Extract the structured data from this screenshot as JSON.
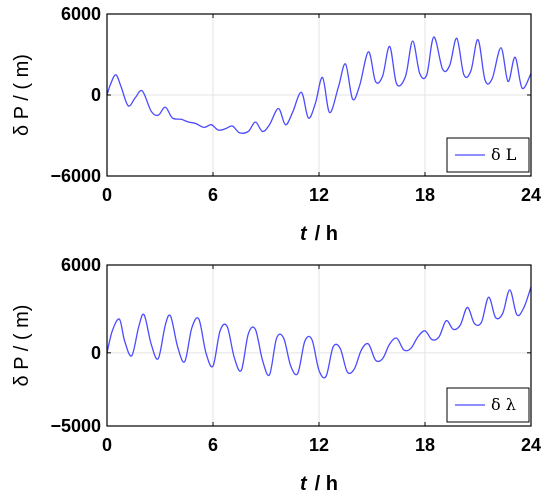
{
  "chart_data": [
    {
      "type": "line",
      "xlabel_var": "t",
      "xlabel_unit": "/ h",
      "ylabel": "δ P / ( m)",
      "xlim": [
        0,
        24
      ],
      "ylim": [
        -6000,
        6000
      ],
      "xticks": [
        0,
        6,
        12,
        18,
        24
      ],
      "yticks": [
        -6000,
        0,
        6000
      ],
      "ytick_labels": [
        "−6000",
        "0",
        "6000"
      ],
      "grid": true,
      "legend_position": "bottom-right",
      "series": [
        {
          "name": "δ L",
          "color": "#4b4bff",
          "x": [
            0,
            0.2,
            0.5,
            0.8,
            1.2,
            1.6,
            2.0,
            2.5,
            2.9,
            3.3,
            3.7,
            4.2,
            4.6,
            5.0,
            5.5,
            5.9,
            6.3,
            6.7,
            7.1,
            7.5,
            8.0,
            8.4,
            8.8,
            9.2,
            9.7,
            10.1,
            10.5,
            11.0,
            11.4,
            11.8,
            12.2,
            12.6,
            13.1,
            13.5,
            13.9,
            14.3,
            14.8,
            15.2,
            15.6,
            16.0,
            16.4,
            16.9,
            17.3,
            17.7,
            18.1,
            18.5,
            19.0,
            19.4,
            19.8,
            20.2,
            20.6,
            21.0,
            21.4,
            21.8,
            22.3,
            22.7,
            23.1,
            23.5,
            24.0
          ],
          "values": [
            0,
            800,
            1500,
            600,
            -800,
            -200,
            300,
            -1200,
            -1500,
            -900,
            -1700,
            -1800,
            -2000,
            -2100,
            -2400,
            -2200,
            -2600,
            -2500,
            -2300,
            -2800,
            -2700,
            -2000,
            -2700,
            -2200,
            -1000,
            -2200,
            -1300,
            200,
            -1700,
            -600,
            1300,
            -1300,
            600,
            2300,
            -300,
            700,
            3200,
            1000,
            1400,
            3600,
            800,
            1400,
            4000,
            1600,
            1500,
            4300,
            1900,
            2200,
            4200,
            1500,
            1800,
            4100,
            1100,
            1200,
            3500,
            1000,
            2800,
            500,
            1600
          ]
        }
      ]
    },
    {
      "type": "line",
      "xlabel_var": "t",
      "xlabel_unit": "/ h",
      "ylabel": "δ P / ( m)",
      "xlim": [
        0,
        24
      ],
      "ylim": [
        -5000,
        6000
      ],
      "xticks": [
        0,
        6,
        12,
        18,
        24
      ],
      "yticks": [
        -5000,
        0,
        6000
      ],
      "ytick_labels": [
        "−5000",
        "0",
        "6000"
      ],
      "grid": true,
      "legend_position": "bottom-right",
      "series": [
        {
          "name": "δ λ",
          "color": "#4b4bff",
          "x": [
            0,
            0.3,
            0.7,
            1.0,
            1.4,
            1.8,
            2.1,
            2.5,
            2.9,
            3.3,
            3.6,
            4.0,
            4.4,
            4.8,
            5.2,
            5.6,
            6.0,
            6.4,
            6.8,
            7.2,
            7.6,
            8.0,
            8.4,
            8.8,
            9.2,
            9.6,
            10.0,
            10.4,
            10.8,
            11.2,
            11.6,
            12.0,
            12.4,
            12.8,
            13.2,
            13.6,
            14.0,
            14.4,
            14.8,
            15.2,
            15.6,
            16.0,
            16.4,
            16.8,
            17.2,
            17.6,
            18.0,
            18.4,
            18.8,
            19.2,
            19.6,
            20.0,
            20.4,
            20.8,
            21.2,
            21.6,
            22.0,
            22.4,
            22.8,
            23.2,
            23.6,
            24.0
          ],
          "values": [
            0,
            1500,
            2300,
            800,
            -200,
            1800,
            2600,
            600,
            -400,
            1900,
            2500,
            400,
            -600,
            1700,
            2300,
            0,
            -900,
            1500,
            1800,
            -300,
            -1200,
            1300,
            1600,
            -500,
            -1500,
            1000,
            1000,
            -900,
            -1400,
            800,
            900,
            -1200,
            -1600,
            400,
            300,
            -1300,
            -1100,
            200,
            600,
            -500,
            -400,
            600,
            1000,
            200,
            300,
            1100,
            1500,
            900,
            1100,
            2200,
            1600,
            1900,
            3100,
            2000,
            2100,
            3800,
            2400,
            2700,
            4300,
            2600,
            3100,
            4500
          ]
        }
      ]
    }
  ]
}
